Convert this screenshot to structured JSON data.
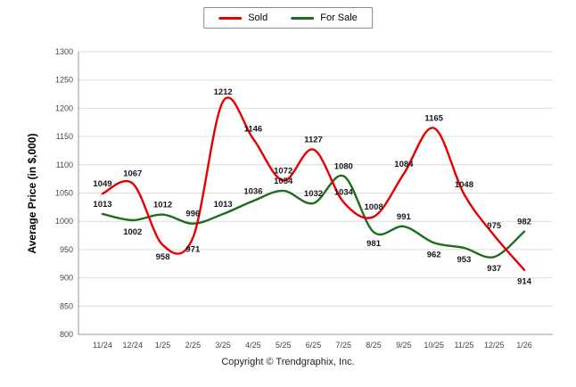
{
  "footer": {
    "text": "Copyright © Trendgraphix, Inc."
  },
  "colors": {
    "sold_line": "#e60000",
    "for_sale_line": "#1b6e1b",
    "gridline": "#dcdcdc",
    "axis": "#999999",
    "tick_label": "#444444",
    "data_label": "#16161e"
  },
  "chart_data": {
    "type": "line",
    "title": "",
    "xlabel": "",
    "ylabel": "Average Price (in $,000)",
    "ylim": [
      800,
      1300
    ],
    "ytick_step": 50,
    "grid": true,
    "legend_position": "top-center",
    "categories": [
      "11/24",
      "12/24",
      "1/25",
      "2/25",
      "3/25",
      "4/25",
      "5/25",
      "6/25",
      "7/25",
      "8/25",
      "9/25",
      "10/25",
      "11/25",
      "12/25",
      "1/26"
    ],
    "series": [
      {
        "name": "Sold",
        "color": "#e60000",
        "values": [
          1049,
          1067,
          958,
          971,
          1212,
          1146,
          1072,
          1127,
          1034,
          1008,
          1084,
          1165,
          1048,
          975,
          914
        ],
        "label_sides": [
          "above",
          "above",
          "below",
          "below",
          "above",
          "above",
          "above",
          "above",
          "above",
          "above",
          "above",
          "above",
          "above",
          "above",
          "below"
        ]
      },
      {
        "name": "For Sale",
        "color": "#1b6e1b",
        "values": [
          1013,
          1002,
          1012,
          996,
          1013,
          1036,
          1054,
          1032,
          1080,
          981,
          991,
          962,
          953,
          937,
          982
        ],
        "label_sides": [
          "above",
          "below",
          "above",
          "above",
          "above",
          "above",
          "above",
          "above",
          "above",
          "below",
          "above",
          "below",
          "below",
          "below",
          "above"
        ]
      }
    ]
  }
}
